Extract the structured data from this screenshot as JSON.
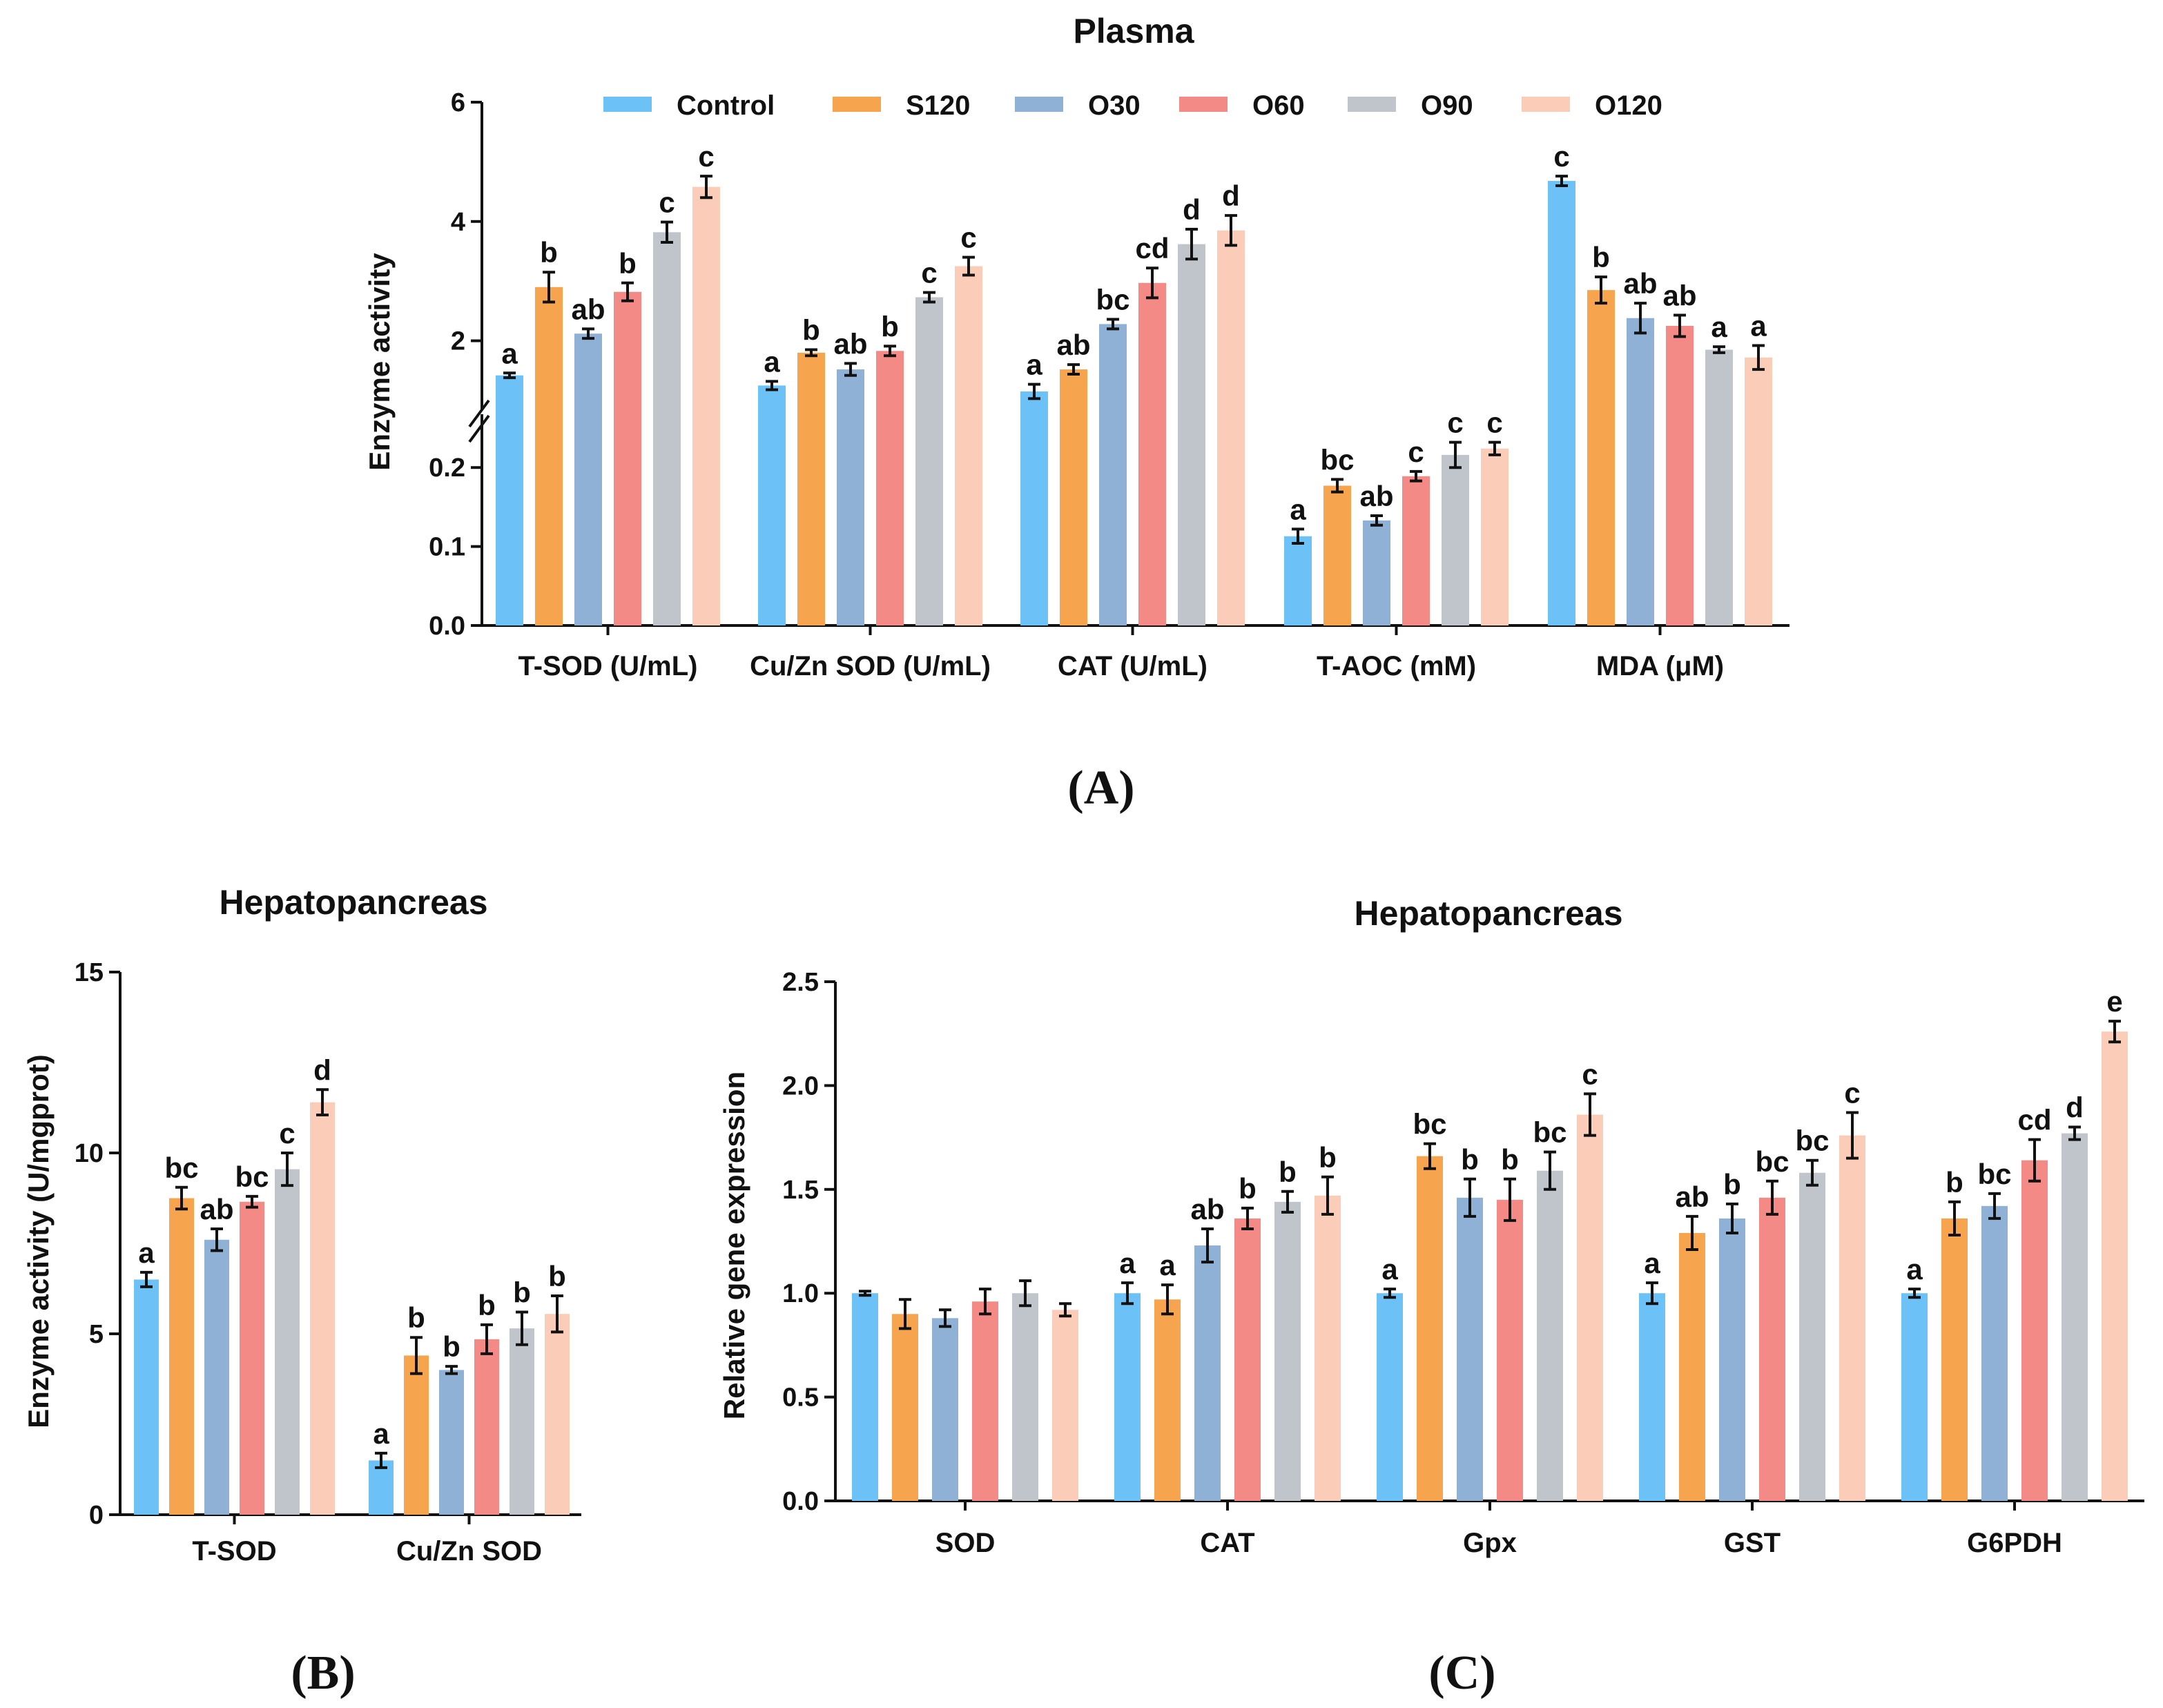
{
  "colors": {
    "Control": "#6cc1f7",
    "S120": "#f7a44e",
    "O30": "#8fb1d6",
    "O60": "#f48a86",
    "O90": "#bfc5ca",
    "O120": "#fbcdb9",
    "axis": "#111111"
  },
  "panel_labels": [
    "(A)",
    "(B)",
    "(C)"
  ],
  "chart_data": [
    {
      "id": "A",
      "type": "bar",
      "title": "Plasma",
      "ylabel": "Enzyme activity",
      "xlabel": "",
      "broken_axis": true,
      "lower_ylim": [
        0,
        0.25
      ],
      "upper_ylim": [
        1,
        6
      ],
      "lower_ticks": [
        "0.0",
        "0.1",
        "0.2"
      ],
      "upper_ticks": [
        "2",
        "4",
        "6"
      ],
      "legend": [
        "Control",
        "S120",
        "O30",
        "O60",
        "O90",
        "O120"
      ],
      "legend_position": "top",
      "categories": [
        "T-SOD (U/mL)",
        "Cu/Zn SOD (U/mL)",
        "CAT (U/mL)",
        "T-AOC (mM)",
        "MDA (μM)"
      ],
      "series": [
        {
          "name": "Control",
          "values": [
            1.42,
            1.25,
            1.15,
            0.113,
            4.68
          ],
          "errors": [
            0.04,
            0.07,
            0.12,
            0.009,
            0.08
          ],
          "letters": [
            "a",
            "a",
            "a",
            "a",
            "c"
          ]
        },
        {
          "name": "S120",
          "values": [
            2.9,
            1.8,
            1.52,
            0.177,
            2.85
          ],
          "errors": [
            0.25,
            0.05,
            0.08,
            0.008,
            0.22
          ],
          "letters": [
            "b",
            "b",
            "ab",
            "bc",
            "b"
          ]
        },
        {
          "name": "O30",
          "values": [
            2.12,
            1.52,
            2.28,
            0.133,
            2.38
          ],
          "errors": [
            0.08,
            0.1,
            0.08,
            0.006,
            0.25
          ],
          "letters": [
            "ab",
            "ab",
            "bc",
            "ab",
            "ab"
          ]
        },
        {
          "name": "O60",
          "values": [
            2.82,
            1.83,
            2.97,
            0.189,
            2.25
          ],
          "errors": [
            0.15,
            0.08,
            0.25,
            0.006,
            0.18
          ],
          "letters": [
            "b",
            "b",
            "cd",
            "c",
            "ab"
          ]
        },
        {
          "name": "O90",
          "values": [
            3.82,
            2.73,
            3.62,
            0.216,
            1.85
          ],
          "errors": [
            0.17,
            0.08,
            0.25,
            0.016,
            0.05
          ],
          "letters": [
            "c",
            "c",
            "d",
            "c",
            "a"
          ]
        },
        {
          "name": "O120",
          "values": [
            4.58,
            3.25,
            3.85,
            0.224,
            1.72
          ],
          "errors": [
            0.18,
            0.15,
            0.25,
            0.008,
            0.2
          ],
          "letters": [
            "c",
            "c",
            "d",
            "c",
            "a"
          ]
        }
      ]
    },
    {
      "id": "B",
      "type": "bar",
      "title": "Hepatopancreas",
      "ylabel": "Enzyme activity (U/mgprot)",
      "xlabel": "",
      "ylim": [
        0,
        15
      ],
      "yticks": [
        "0",
        "5",
        "10",
        "15"
      ],
      "categories": [
        "T-SOD",
        "Cu/Zn SOD"
      ],
      "series": [
        {
          "name": "Control",
          "values": [
            6.5,
            1.5
          ],
          "errors": [
            0.2,
            0.2
          ],
          "letters": [
            "a",
            "a"
          ]
        },
        {
          "name": "S120",
          "values": [
            8.75,
            4.4
          ],
          "errors": [
            0.3,
            0.5
          ],
          "letters": [
            "bc",
            "b"
          ]
        },
        {
          "name": "O30",
          "values": [
            7.6,
            4.0
          ],
          "errors": [
            0.3,
            0.1
          ],
          "letters": [
            "ab",
            "b"
          ]
        },
        {
          "name": "O60",
          "values": [
            8.65,
            4.85
          ],
          "errors": [
            0.15,
            0.4
          ],
          "letters": [
            "bc",
            "b"
          ]
        },
        {
          "name": "O90",
          "values": [
            9.55,
            5.15
          ],
          "errors": [
            0.45,
            0.45
          ],
          "letters": [
            "c",
            "b"
          ]
        },
        {
          "name": "O120",
          "values": [
            11.4,
            5.55
          ],
          "errors": [
            0.35,
            0.5
          ],
          "letters": [
            "d",
            "b"
          ]
        }
      ]
    },
    {
      "id": "C",
      "type": "bar",
      "title": "Hepatopancreas",
      "ylabel": "Relative gene expression",
      "xlabel": "",
      "ylim": [
        0,
        2.5
      ],
      "yticks": [
        "0.0",
        "0.5",
        "1.0",
        "1.5",
        "2.0",
        "2.5"
      ],
      "categories": [
        "SOD",
        "CAT",
        "Gpx",
        "GST",
        "G6PDH"
      ],
      "series": [
        {
          "name": "Control",
          "values": [
            1.0,
            1.0,
            1.0,
            1.0,
            1.0
          ],
          "errors": [
            0.01,
            0.05,
            0.02,
            0.05,
            0.02
          ],
          "letters": [
            "",
            "a",
            "a",
            "a",
            "a"
          ]
        },
        {
          "name": "S120",
          "values": [
            0.9,
            0.97,
            1.66,
            1.29,
            1.36
          ],
          "errors": [
            0.07,
            0.07,
            0.06,
            0.08,
            0.08
          ],
          "letters": [
            "",
            "a",
            "bc",
            "ab",
            "b"
          ]
        },
        {
          "name": "O30",
          "values": [
            0.88,
            1.23,
            1.46,
            1.36,
            1.42
          ],
          "errors": [
            0.04,
            0.08,
            0.09,
            0.07,
            0.06
          ],
          "letters": [
            "",
            "ab",
            "b",
            "b",
            "bc"
          ]
        },
        {
          "name": "O60",
          "values": [
            0.96,
            1.36,
            1.45,
            1.46,
            1.64
          ],
          "errors": [
            0.06,
            0.05,
            0.1,
            0.08,
            0.1
          ],
          "letters": [
            "",
            "b",
            "b",
            "bc",
            "cd"
          ]
        },
        {
          "name": "O90",
          "values": [
            1.0,
            1.44,
            1.59,
            1.58,
            1.77
          ],
          "errors": [
            0.06,
            0.05,
            0.09,
            0.06,
            0.03
          ],
          "letters": [
            "",
            "b",
            "bc",
            "bc",
            "d"
          ]
        },
        {
          "name": "O120",
          "values": [
            0.92,
            1.47,
            1.86,
            1.76,
            2.26
          ],
          "errors": [
            0.03,
            0.09,
            0.1,
            0.11,
            0.05
          ],
          "letters": [
            "",
            "b",
            "c",
            "c",
            "e"
          ]
        }
      ]
    }
  ]
}
